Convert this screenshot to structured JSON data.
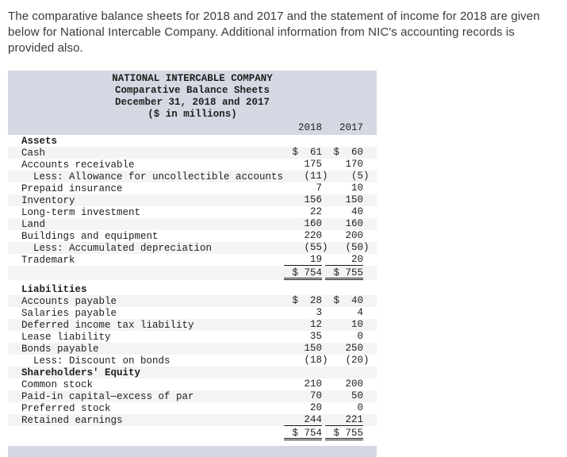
{
  "intro_lines": [
    "The comparative balance sheets for 2018 and 2017 and the statement of income for 2018 are given",
    "below for National Intercable Company. Additional information from NIC's accounting records is",
    "provided also."
  ],
  "colors": {
    "header_bg": "#d5d8e2",
    "row_alt_bg": "#f4f4f4",
    "table_text": "#1e1e1e",
    "intro_text": "#3a3a3a"
  },
  "balance_sheet": {
    "title_lines": [
      "NATIONAL INTERCABLE COMPANY",
      "Comparative Balance Sheets",
      "December 31, 2018 and 2017",
      "($ in millions)"
    ],
    "col_headers": [
      "2018",
      "2017"
    ],
    "rows": [
      {
        "type": "section",
        "label": "Assets",
        "v2018": "",
        "v2017": ""
      },
      {
        "type": "item",
        "label": "Cash",
        "v2018": "$  61",
        "v2017": "$  60"
      },
      {
        "type": "item",
        "label": "Accounts receivable",
        "v2018": "175",
        "v2017": "170"
      },
      {
        "type": "less",
        "label": "Less: Allowance for uncollectible accounts",
        "v2018": "(11)",
        "v2017": "(5)"
      },
      {
        "type": "item",
        "label": "Prepaid insurance",
        "v2018": "7",
        "v2017": "10"
      },
      {
        "type": "item",
        "label": "Inventory",
        "v2018": "156",
        "v2017": "150"
      },
      {
        "type": "item",
        "label": "Long-term investment",
        "v2018": "22",
        "v2017": "40"
      },
      {
        "type": "item",
        "label": "Land",
        "v2018": "160",
        "v2017": "160"
      },
      {
        "type": "item",
        "label": "Buildings and equipment",
        "v2018": "220",
        "v2017": "200"
      },
      {
        "type": "less",
        "label": "Less: Accumulated depreciation",
        "v2018": "(55)",
        "v2017": "(50)"
      },
      {
        "type": "item_ruled",
        "label": "Trademark",
        "v2018": "19",
        "v2017": "20"
      },
      {
        "type": "total",
        "label": "",
        "v2018": "$ 754",
        "v2017": "$ 755"
      },
      {
        "type": "section",
        "label": "Liabilities",
        "v2018": "",
        "v2017": ""
      },
      {
        "type": "item",
        "label": "Accounts payable",
        "v2018": "$  28",
        "v2017": "$  40"
      },
      {
        "type": "item",
        "label": "Salaries payable",
        "v2018": "3",
        "v2017": "4"
      },
      {
        "type": "item",
        "label": "Deferred income tax liability",
        "v2018": "12",
        "v2017": "10"
      },
      {
        "type": "item",
        "label": "Lease liability",
        "v2018": "35",
        "v2017": "0"
      },
      {
        "type": "item",
        "label": "Bonds payable",
        "v2018": "150",
        "v2017": "250"
      },
      {
        "type": "less",
        "label": "Less: Discount on bonds",
        "v2018": "(18)",
        "v2017": "(20)"
      },
      {
        "type": "section",
        "label": "Shareholders' Equity",
        "v2018": "",
        "v2017": ""
      },
      {
        "type": "item",
        "label": "Common stock",
        "v2018": "210",
        "v2017": "200"
      },
      {
        "type": "item",
        "label": "Paid-in capital—excess of par",
        "v2018": "70",
        "v2017": "50"
      },
      {
        "type": "item",
        "label": "Preferred stock",
        "v2018": "20",
        "v2017": "0"
      },
      {
        "type": "item_ruled",
        "label": "Retained earnings",
        "v2018": "244",
        "v2017": "221"
      },
      {
        "type": "total",
        "label": "",
        "v2018": "$ 754",
        "v2017": "$ 755"
      }
    ]
  }
}
